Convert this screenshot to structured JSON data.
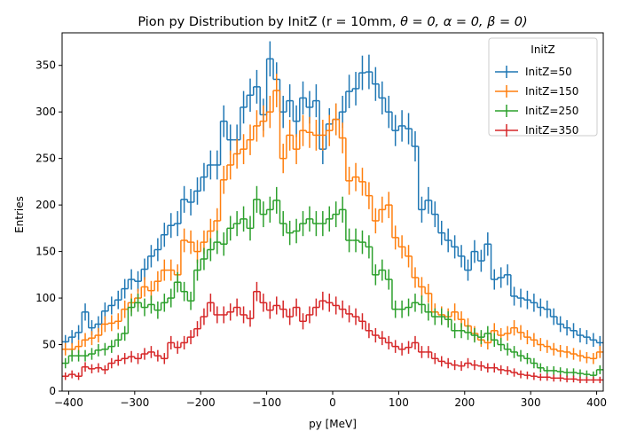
{
  "chart_data": {
    "type": "histogram-step",
    "title": "Pion py Distribution by InitZ (r = 10mm, θ = 0, α = 0, β = 0)",
    "title_parts": {
      "prefix": "Pion py Distribution by InitZ (r = 10mm, ",
      "theta": "θ = 0, ",
      "alpha": "α = 0, ",
      "beta": "β = 0)"
    },
    "xlabel": "py [MeV]",
    "ylabel": "Entries",
    "xlim": [
      -410,
      410
    ],
    "ylim": [
      0,
      385
    ],
    "xticks": [
      -400,
      -300,
      -200,
      -100,
      0,
      100,
      200,
      300,
      400
    ],
    "xtick_labels": [
      "−400",
      "−300",
      "−200",
      "−100",
      "0",
      "100",
      "200",
      "300",
      "400"
    ],
    "yticks": [
      0,
      50,
      100,
      150,
      200,
      250,
      300,
      350
    ],
    "ytick_labels": [
      "0",
      "50",
      "100",
      "150",
      "200",
      "250",
      "300",
      "350"
    ],
    "grid": false,
    "legend": {
      "title": "InitZ",
      "position": "top-right"
    },
    "bins": {
      "start": -410,
      "width": 10,
      "count": 82
    },
    "error_bars": "sqrt(N)",
    "series": [
      {
        "name": "InitZ=50",
        "color": "#1f77b4",
        "values": [
          53,
          58,
          63,
          85,
          68,
          72,
          86,
          92,
          98,
          110,
          120,
          118,
          131,
          145,
          152,
          168,
          178,
          180,
          206,
          203,
          215,
          230,
          243,
          243,
          290,
          270,
          270,
          305,
          318,
          327,
          297,
          357,
          335,
          300,
          312,
          290,
          315,
          305,
          312,
          260,
          287,
          292,
          300,
          322,
          325,
          342,
          343,
          330,
          315,
          300,
          280,
          285,
          282,
          263,
          195,
          205,
          190,
          170,
          162,
          155,
          145,
          130,
          150,
          140,
          158,
          120,
          122,
          125,
          102,
          100,
          98,
          95,
          90,
          88,
          80,
          72,
          68,
          65,
          60,
          58,
          55,
          52
        ]
      },
      {
        "name": "InitZ=150",
        "color": "#ff7f0e",
        "values": [
          45,
          45,
          48,
          55,
          57,
          60,
          72,
          73,
          75,
          88,
          95,
          100,
          112,
          108,
          118,
          130,
          130,
          125,
          162,
          160,
          150,
          160,
          172,
          183,
          227,
          243,
          255,
          260,
          270,
          285,
          290,
          300,
          323,
          250,
          275,
          260,
          280,
          278,
          275,
          275,
          280,
          292,
          272,
          226,
          230,
          225,
          210,
          183,
          195,
          200,
          165,
          155,
          145,
          122,
          112,
          105,
          85,
          82,
          80,
          85,
          77,
          70,
          62,
          55,
          52,
          65,
          60,
          62,
          68,
          63,
          58,
          55,
          50,
          48,
          45,
          43,
          42,
          40,
          38,
          36,
          35,
          42
        ]
      },
      {
        "name": "InitZ=250",
        "color": "#2ca02c",
        "values": [
          30,
          38,
          38,
          38,
          40,
          44,
          45,
          48,
          55,
          62,
          90,
          95,
          90,
          93,
          87,
          95,
          100,
          117,
          107,
          97,
          130,
          142,
          152,
          160,
          158,
          175,
          180,
          185,
          175,
          206,
          190,
          195,
          205,
          180,
          170,
          172,
          180,
          185,
          180,
          180,
          185,
          190,
          195,
          162,
          162,
          160,
          155,
          125,
          130,
          120,
          88,
          88,
          90,
          95,
          93,
          85,
          80,
          80,
          77,
          65,
          65,
          63,
          60,
          58,
          62,
          55,
          50,
          45,
          42,
          38,
          35,
          30,
          25,
          22,
          22,
          21,
          20,
          20,
          19,
          18,
          17,
          23
        ]
      },
      {
        "name": "InitZ=350",
        "color": "#d62728",
        "values": [
          16,
          18,
          16,
          26,
          24,
          25,
          23,
          30,
          33,
          35,
          37,
          35,
          40,
          42,
          38,
          35,
          52,
          47,
          52,
          58,
          67,
          80,
          95,
          82,
          82,
          85,
          90,
          82,
          78,
          107,
          95,
          87,
          92,
          88,
          80,
          90,
          75,
          82,
          90,
          97,
          95,
          92,
          88,
          83,
          80,
          75,
          65,
          60,
          57,
          52,
          48,
          45,
          47,
          52,
          42,
          42,
          35,
          32,
          30,
          28,
          27,
          30,
          28,
          27,
          25,
          25,
          23,
          22,
          20,
          18,
          17,
          16,
          15,
          15,
          14,
          14,
          13,
          13,
          12,
          12,
          12,
          12
        ]
      }
    ]
  }
}
